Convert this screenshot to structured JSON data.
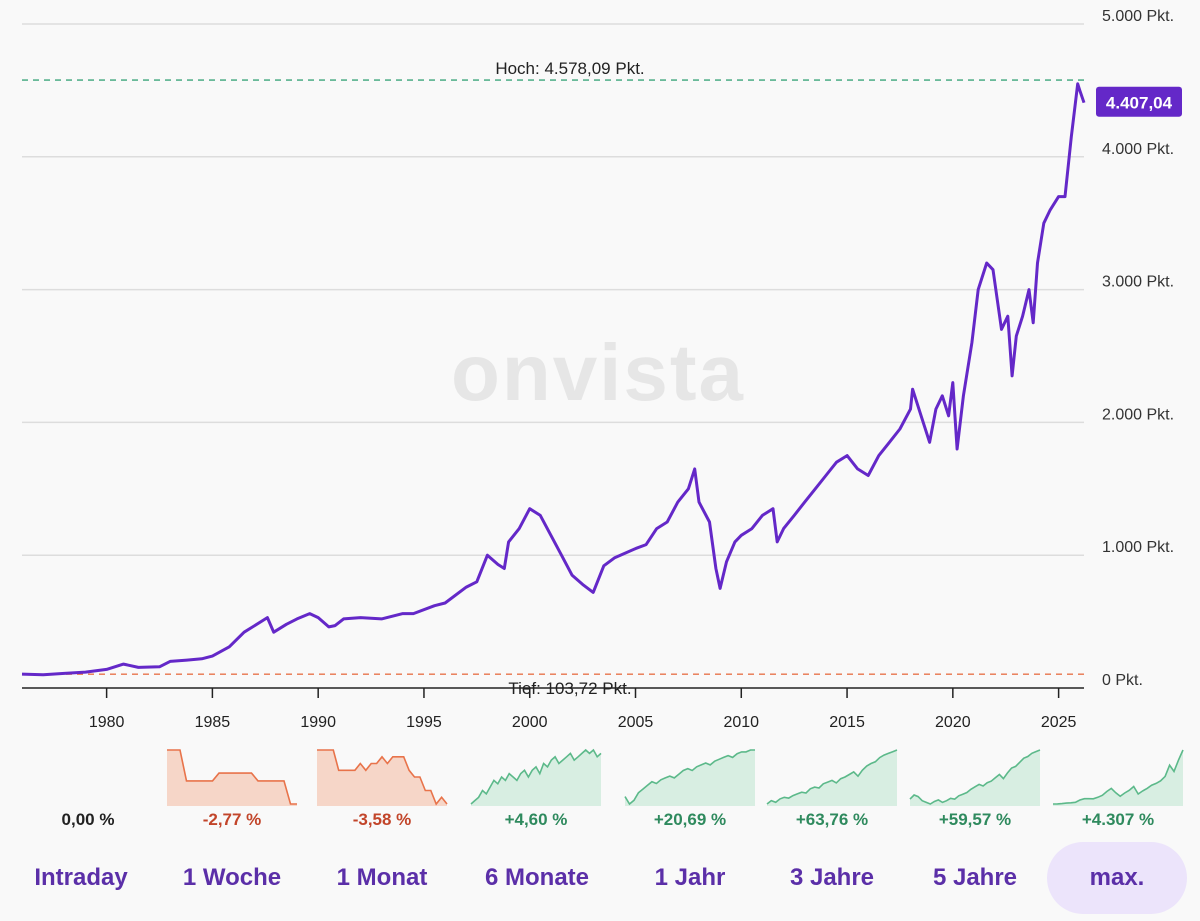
{
  "chart_data": {
    "type": "line",
    "yunit": "Pkt.",
    "ylim": [
      0,
      5000
    ],
    "xlim": [
      1976.0,
      2026.2
    ],
    "y_ticks": [
      "5.000 Pkt.",
      "4.000 Pkt.",
      "3.000 Pkt.",
      "2.000 Pkt.",
      "1.000 Pkt.",
      "0 Pkt."
    ],
    "y_tick_values": [
      5000,
      4000,
      3000,
      2000,
      1000,
      0
    ],
    "x_ticks": [
      "1980",
      "1985",
      "1990",
      "1995",
      "2000",
      "2005",
      "2010",
      "2015",
      "2020",
      "2025"
    ],
    "x_tick_values": [
      1980,
      1985,
      1990,
      1995,
      2000,
      2005,
      2010,
      2015,
      2020,
      2025
    ],
    "grid": true,
    "high": {
      "label": "Hoch: 4.578,09 Pkt.",
      "value": 4578.09
    },
    "low": {
      "label": "Tief: 103,72 Pkt.",
      "value": 103.72
    },
    "current": {
      "label": "4.407,04",
      "value": 4407.04
    },
    "watermark": "onvista",
    "colors": {
      "line": "#6428c8",
      "high": "#3aa57a",
      "low": "#e8734a",
      "grid": "#dddddd"
    },
    "series": [
      {
        "x": [
          1976.0,
          1977.0,
          1978.0,
          1979.0,
          1980.0,
          1980.8,
          1981.5,
          1982.5,
          1983.0,
          1983.8,
          1984.5,
          1985.0,
          1985.8,
          1986.5,
          1987.0,
          1987.6,
          1987.9,
          1988.5,
          1989.0,
          1989.6,
          1990.0,
          1990.5,
          1990.8,
          1991.2,
          1992.0,
          1993.0,
          1994.0,
          1994.5,
          1995.5,
          1996.0,
          1997.0,
          1997.5,
          1998.0,
          1998.5,
          1998.8,
          1999.0,
          1999.5,
          2000.0,
          2000.5,
          2001.0,
          2001.5,
          2002.0,
          2002.5,
          2003.0,
          2003.5,
          2004.0,
          2005.0,
          2005.5,
          2006.0,
          2006.5,
          2007.0,
          2007.5,
          2007.8,
          2008.0,
          2008.5,
          2008.8,
          2009.0,
          2009.3,
          2009.7,
          2010.0,
          2010.5,
          2011.0,
          2011.5,
          2011.7,
          2012.0,
          2012.5,
          2013.0,
          2013.5,
          2014.0,
          2014.5,
          2015.0,
          2015.5,
          2016.0,
          2016.5,
          2017.0,
          2017.5,
          2018.0,
          2018.1,
          2018.5,
          2018.9,
          2019.2,
          2019.5,
          2019.8,
          2020.0,
          2020.2,
          2020.5,
          2020.9,
          2021.2,
          2021.6,
          2021.9,
          2022.3,
          2022.6,
          2022.8,
          2023.0,
          2023.3,
          2023.6,
          2023.8,
          2024.0,
          2024.3,
          2024.6,
          2025.0,
          2025.3,
          2025.6,
          2025.9,
          2026.0,
          2026.2
        ],
        "y": [
          105,
          100,
          110,
          120,
          140,
          180,
          155,
          160,
          200,
          210,
          220,
          240,
          310,
          420,
          470,
          530,
          420,
          480,
          520,
          560,
          530,
          460,
          470,
          520,
          530,
          520,
          560,
          560,
          620,
          640,
          760,
          800,
          1000,
          930,
          900,
          1100,
          1200,
          1350,
          1300,
          1150,
          1000,
          850,
          780,
          720,
          920,
          980,
          1050,
          1080,
          1200,
          1250,
          1400,
          1500,
          1650,
          1400,
          1250,
          900,
          750,
          950,
          1100,
          1150,
          1200,
          1300,
          1350,
          1100,
          1200,
          1300,
          1400,
          1500,
          1600,
          1700,
          1750,
          1650,
          1600,
          1750,
          1850,
          1950,
          2100,
          2250,
          2050,
          1850,
          2100,
          2200,
          2050,
          2300,
          1800,
          2200,
          2600,
          3000,
          3200,
          3150,
          2700,
          2800,
          2350,
          2650,
          2800,
          3000,
          2750,
          3200,
          3500,
          3600,
          3700,
          3700,
          4150,
          4550,
          4500,
          4407.04
        ]
      }
    ],
    "minis": [
      {
        "period": "Intraday",
        "change": "0,00 %",
        "trend": "flat",
        "values": []
      },
      {
        "period": "1 Woche",
        "change": "-2,77 %",
        "trend": "down",
        "values": [
          100,
          100,
          100,
          96,
          96,
          96,
          96,
          96,
          97,
          97,
          97,
          97,
          97,
          97,
          96,
          96,
          96,
          96,
          96,
          93,
          93
        ]
      },
      {
        "period": "1 Monat",
        "change": "-3,58 %",
        "trend": "down",
        "values": [
          100,
          100,
          100,
          100,
          97,
          97,
          97,
          97,
          98,
          97,
          98,
          98,
          99,
          98,
          99,
          99,
          99,
          97,
          96,
          96,
          94,
          94,
          92,
          93,
          92
        ]
      },
      {
        "period": "6 Monate",
        "change": "+4,60 %",
        "trend": "up",
        "values": [
          96,
          97,
          98,
          100,
          99,
          101,
          103,
          102,
          104,
          103,
          105,
          104,
          103,
          105,
          106,
          104,
          106,
          107,
          105,
          108,
          107,
          109,
          110,
          108,
          109,
          110,
          111,
          109,
          110,
          111,
          112,
          111,
          112,
          110,
          111
        ]
      },
      {
        "period": "1 Jahr",
        "change": "+20,69 %",
        "trend": "up",
        "values": [
          100,
          96,
          98,
          102,
          104,
          106,
          108,
          107,
          109,
          110,
          111,
          110,
          112,
          114,
          115,
          114,
          116,
          117,
          118,
          117,
          119,
          120,
          121,
          122,
          121,
          123,
          124,
          124,
          125,
          125
        ]
      },
      {
        "period": "3 Jahre",
        "change": "+63,76 %",
        "trend": "up",
        "values": [
          100,
          104,
          102,
          106,
          108,
          107,
          110,
          112,
          114,
          113,
          118,
          120,
          119,
          124,
          126,
          128,
          125,
          130,
          132,
          135,
          138,
          133,
          140,
          145,
          148,
          150,
          155,
          158,
          160,
          162,
          164
        ]
      },
      {
        "period": "5 Jahre",
        "change": "+59,57 %",
        "trend": "up",
        "values": [
          100,
          105,
          103,
          98,
          96,
          94,
          97,
          99,
          96,
          98,
          101,
          100,
          104,
          106,
          108,
          112,
          115,
          118,
          116,
          120,
          122,
          126,
          130,
          125,
          132,
          138,
          140,
          145,
          150,
          152,
          156,
          158,
          160
        ]
      },
      {
        "period": "max.",
        "change": "+4.307 %",
        "trend": "up",
        "values": [
          105,
          110,
          140,
          180,
          200,
          240,
          420,
          530,
          530,
          520,
          640,
          800,
          1100,
          1350,
          1000,
          720,
          980,
          1200,
          1500,
          900,
          1150,
          1350,
          1600,
          1750,
          1950,
          2300,
          3200,
          2700,
          3600,
          4407
        ]
      }
    ]
  },
  "tabs": [
    {
      "label": "Intraday",
      "active": false
    },
    {
      "label": "1 Woche",
      "active": false
    },
    {
      "label": "1 Monat",
      "active": false
    },
    {
      "label": "6 Monate",
      "active": false
    },
    {
      "label": "1 Jahr",
      "active": false
    },
    {
      "label": "3 Jahre",
      "active": false
    },
    {
      "label": "5 Jahre",
      "active": false
    },
    {
      "label": "max.",
      "active": true
    }
  ]
}
